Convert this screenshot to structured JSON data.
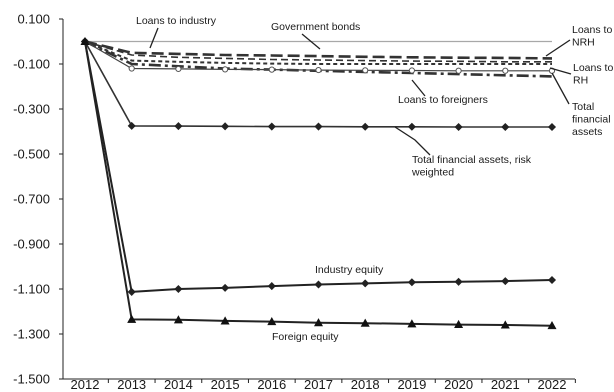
{
  "chart_data": {
    "type": "line",
    "title": "",
    "xlabel": "",
    "ylabel": "",
    "x": [
      2012,
      2013,
      2014,
      2015,
      2016,
      2017,
      2018,
      2019,
      2020,
      2021,
      2022
    ],
    "ylim": [
      -1.5,
      0.1
    ],
    "yticks": [
      0.1,
      -0.1,
      -0.3,
      -0.5,
      -0.7,
      -0.9,
      -1.1,
      -1.3,
      -1.5
    ],
    "ytick_labels": [
      "0.100",
      "-0.100",
      "-0.300",
      "-0.500",
      "-0.700",
      "-0.900",
      "-1.100",
      "-1.300",
      "-1.500"
    ],
    "grid": false,
    "legend": "none",
    "series": [
      {
        "name": "Government bonds",
        "style": "solid",
        "color": "#a8a8a8",
        "marker": "none",
        "values": [
          0,
          0,
          0,
          0,
          0,
          0,
          0,
          0,
          0,
          0,
          0
        ]
      },
      {
        "name": "Loans to NRH",
        "style": "longdash",
        "color": "#333333",
        "marker": "none",
        "values": [
          0,
          -0.05,
          -0.055,
          -0.06,
          -0.062,
          -0.065,
          -0.068,
          -0.07,
          -0.072,
          -0.073,
          -0.075
        ]
      },
      {
        "name": "Loans to industry",
        "style": "dash",
        "color": "#333333",
        "marker": "none",
        "values": [
          0,
          -0.06,
          -0.07,
          -0.075,
          -0.08,
          -0.082,
          -0.085,
          -0.087,
          -0.088,
          -0.09,
          -0.09
        ]
      },
      {
        "name": "Loans to RH",
        "style": "shortdash",
        "color": "#333333",
        "marker": "none",
        "values": [
          0,
          -0.085,
          -0.09,
          -0.095,
          -0.098,
          -0.1,
          -0.1,
          -0.1,
          -0.1,
          -0.1,
          -0.1
        ]
      },
      {
        "name": "Loans to foreigners",
        "style": "dashdot",
        "color": "#333333",
        "marker": "none",
        "values": [
          0,
          -0.1,
          -0.11,
          -0.12,
          -0.125,
          -0.13,
          -0.135,
          -0.14,
          -0.145,
          -0.15,
          -0.155
        ]
      },
      {
        "name": "Total financial assets",
        "style": "solid",
        "color": "#444444",
        "marker": "open-circle",
        "values": [
          0,
          -0.12,
          -0.122,
          -0.124,
          -0.125,
          -0.127,
          -0.128,
          -0.129,
          -0.13,
          -0.13,
          -0.13
        ]
      },
      {
        "name": "Total financial assets, risk weighted",
        "style": "solid",
        "color": "#333333",
        "marker": "diamond",
        "values": [
          0,
          -0.375,
          -0.376,
          -0.377,
          -0.378,
          -0.378,
          -0.379,
          -0.379,
          -0.38,
          -0.38,
          -0.38
        ]
      },
      {
        "name": "Industry equity",
        "style": "solid",
        "color": "#222222",
        "marker": "diamond",
        "values": [
          0,
          -1.113,
          -1.1,
          -1.095,
          -1.087,
          -1.08,
          -1.075,
          -1.07,
          -1.068,
          -1.065,
          -1.06
        ]
      },
      {
        "name": "Foreign equity",
        "style": "solid",
        "color": "#222222",
        "marker": "triangle",
        "values": [
          0,
          -1.235,
          -1.237,
          -1.242,
          -1.245,
          -1.25,
          -1.252,
          -1.255,
          -1.258,
          -1.26,
          -1.263
        ]
      }
    ],
    "annotations": [
      {
        "id": "loans-industry",
        "lines": [
          "Loans to industry"
        ]
      },
      {
        "id": "gov-bonds",
        "lines": [
          "Government bonds"
        ]
      },
      {
        "id": "loans-nrh",
        "lines": [
          "Loans to",
          "NRH"
        ]
      },
      {
        "id": "loans-rh",
        "lines": [
          "Loans to",
          "RH"
        ]
      },
      {
        "id": "loans-foreigners",
        "lines": [
          "Loans to foreigners"
        ]
      },
      {
        "id": "total-fin",
        "lines": [
          "Total",
          "financial",
          "assets"
        ]
      },
      {
        "id": "total-fin-rw",
        "lines": [
          "Total financial assets, risk",
          "weighted"
        ]
      },
      {
        "id": "industry-equity",
        "lines": [
          "Industry equity"
        ]
      },
      {
        "id": "foreign-equity",
        "lines": [
          "Foreign equity"
        ]
      }
    ]
  }
}
